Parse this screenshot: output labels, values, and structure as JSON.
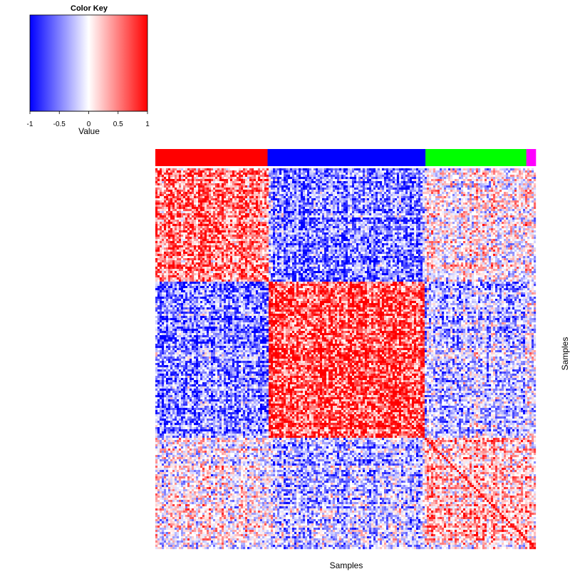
{
  "chart_data": {
    "type": "heatmap",
    "description_of_values": "Sample-by-sample correlation matrix, 4 sample groups in block structure",
    "color_key": {
      "title": "Color Key",
      "xlabel": "Value",
      "range": [
        -1,
        1
      ],
      "ticks": [
        "-1",
        "-0.5",
        "0",
        "0.5",
        "1"
      ],
      "tick_values": [
        -1,
        -0.5,
        0,
        0.5,
        1
      ],
      "colors": {
        "low": "#0000ff",
        "mid": "#ffffff",
        "high": "#ff0000"
      }
    },
    "xlabel": "Samples",
    "ylabel": "Samples",
    "groups": [
      {
        "color": "#ff0000",
        "fraction": 0.295
      },
      {
        "color": "#0000ff",
        "fraction": 0.415
      },
      {
        "color": "#00ff00",
        "fraction": 0.265
      },
      {
        "color": "#ff00ff",
        "fraction": 0.025
      }
    ],
    "block_correlation": [
      [
        0.6,
        -0.6,
        0.05,
        0.05
      ],
      [
        -0.6,
        0.85,
        -0.3,
        -0.1
      ],
      [
        0.05,
        -0.3,
        0.35,
        0.2
      ],
      [
        0.05,
        -0.1,
        0.2,
        0.8
      ]
    ],
    "diagonal_value": 1
  }
}
